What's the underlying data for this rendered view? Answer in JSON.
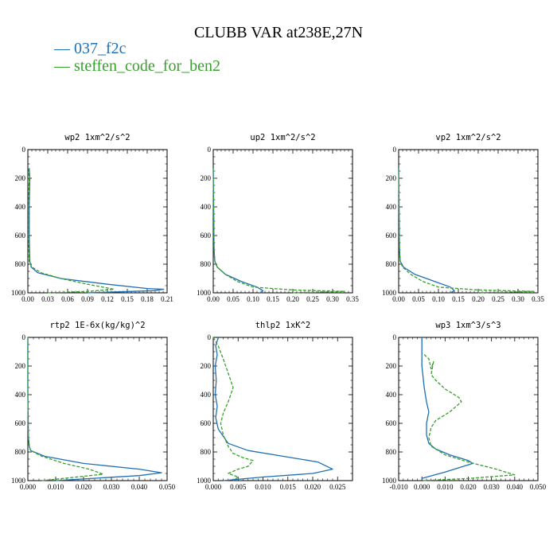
{
  "figure": {
    "title": "CLUBB VAR at238E,27N",
    "legend": [
      {
        "label": "— 037_f2c",
        "color": "#1f6fb4"
      },
      {
        "label": "— steffen_code_for_ben2",
        "color": "#3a9e2e"
      }
    ]
  },
  "chart_data": [
    {
      "type": "line",
      "title": "wp2   1xm^2/s^2",
      "xlim": [
        0,
        0.21
      ],
      "ylim": [
        1000,
        0
      ],
      "xticks": [
        "0.00",
        "0.03",
        "0.06",
        "0.09",
        "0.12",
        "0.15",
        "0.18",
        "0.21"
      ],
      "yticks": [
        "0",
        "200",
        "400",
        "600",
        "800",
        "1000"
      ],
      "series": [
        {
          "name": "037_f2c",
          "color": "#1f6fb4",
          "dash": "solid",
          "x": [
            0.002,
            0.003,
            0.002,
            0.002,
            0.003,
            0.005,
            0.015,
            0.05,
            0.12,
            0.18,
            0.205,
            0.19,
            0.09
          ],
          "y": [
            130,
            200,
            400,
            600,
            780,
            820,
            860,
            900,
            940,
            970,
            975,
            985,
            1000
          ]
        },
        {
          "name": "steffen_code_for_ben2",
          "color": "#3a9e2e",
          "dash": "dashed",
          "x": [
            0.001,
            0.002,
            0.001,
            0.001,
            0.002,
            0.006,
            0.02,
            0.05,
            0.09,
            0.13,
            0.09,
            0.03
          ],
          "y": [
            130,
            200,
            400,
            600,
            780,
            820,
            860,
            900,
            940,
            975,
            990,
            1000
          ]
        }
      ]
    },
    {
      "type": "line",
      "title": "up2   1xm^2/s^2",
      "xlim": [
        0,
        0.35
      ],
      "ylim": [
        1000,
        0
      ],
      "xticks": [
        "0.00",
        "0.05",
        "0.10",
        "0.15",
        "0.20",
        "0.25",
        "0.30",
        "0.35"
      ],
      "yticks": [
        "0",
        "200",
        "400",
        "600",
        "800",
        "1000"
      ],
      "series": [
        {
          "name": "037_f2c",
          "color": "#1f6fb4",
          "dash": "solid",
          "x": [
            0.0,
            0.001,
            0.002,
            0.004,
            0.01,
            0.03,
            0.07,
            0.11,
            0.125,
            0.12
          ],
          "y": [
            130,
            400,
            700,
            780,
            820,
            870,
            920,
            960,
            985,
            1000
          ]
        },
        {
          "name": "steffen_code_for_ben2",
          "color": "#3a9e2e",
          "dash": "dashed",
          "x": [
            0.0,
            0.001,
            0.002,
            0.004,
            0.01,
            0.03,
            0.06,
            0.1,
            0.2,
            0.33,
            0.2
          ],
          "y": [
            130,
            400,
            700,
            780,
            820,
            870,
            920,
            960,
            980,
            990,
            1000
          ]
        }
      ]
    },
    {
      "type": "line",
      "title": "vp2   1xm^2/s^2",
      "xlim": [
        0,
        0.35
      ],
      "ylim": [
        1000,
        0
      ],
      "xticks": [
        "0.00",
        "0.05",
        "0.10",
        "0.15",
        "0.20",
        "0.25",
        "0.30",
        "0.35"
      ],
      "yticks": [
        "0",
        "200",
        "400",
        "600",
        "800",
        "1000"
      ],
      "series": [
        {
          "name": "037_f2c",
          "color": "#1f6fb4",
          "dash": "solid",
          "x": [
            0.0,
            0.001,
            0.002,
            0.004,
            0.012,
            0.04,
            0.09,
            0.13,
            0.14,
            0.13
          ],
          "y": [
            130,
            400,
            700,
            780,
            820,
            870,
            920,
            960,
            985,
            1000
          ]
        },
        {
          "name": "steffen_code_for_ben2",
          "color": "#3a9e2e",
          "dash": "dashed",
          "x": [
            0.0,
            0.001,
            0.002,
            0.004,
            0.01,
            0.03,
            0.06,
            0.1,
            0.2,
            0.34,
            0.2
          ],
          "y": [
            130,
            400,
            700,
            780,
            820,
            870,
            920,
            960,
            980,
            990,
            1000
          ]
        }
      ]
    },
    {
      "type": "line",
      "title": "rtp2   1E-6x(kg/kg)^2",
      "xlim": [
        0,
        0.05
      ],
      "ylim": [
        1000,
        0
      ],
      "xticks": [
        "0.000",
        "0.010",
        "0.020",
        "0.030",
        "0.040",
        "0.050"
      ],
      "yticks": [
        "0",
        "200",
        "400",
        "600",
        "800",
        "1000"
      ],
      "series": [
        {
          "name": "037_f2c",
          "color": "#1f6fb4",
          "dash": "solid",
          "x": [
            0.0,
            0.0,
            0.0002,
            0.0005,
            0.001,
            0.006,
            0.02,
            0.04,
            0.048,
            0.04,
            0.01
          ],
          "y": [
            0,
            400,
            700,
            760,
            790,
            830,
            880,
            920,
            945,
            965,
            1000
          ]
        },
        {
          "name": "steffen_code_for_ben2",
          "color": "#3a9e2e",
          "dash": "dashed",
          "x": [
            0.0,
            0.0,
            0.0002,
            0.0005,
            0.001,
            0.005,
            0.013,
            0.022,
            0.027,
            0.02,
            0.005
          ],
          "y": [
            0,
            400,
            700,
            760,
            790,
            830,
            880,
            920,
            955,
            970,
            1000
          ]
        }
      ]
    },
    {
      "type": "line",
      "title": "thlp2   1xK^2",
      "xlim": [
        0,
        0.028
      ],
      "ylim": [
        1000,
        0
      ],
      "xticks": [
        "0.000",
        "0.005",
        "0.010",
        "0.015",
        "0.020",
        "0.025"
      ],
      "yticks": [
        "0",
        "200",
        "400",
        "600",
        "800",
        "1000"
      ],
      "series": [
        {
          "name": "037_f2c",
          "color": "#1f6fb4",
          "dash": "solid",
          "x": [
            0.001,
            0.0005,
            0.0008,
            0.0004,
            0.0006,
            0.0004,
            0.0008,
            0.0005,
            0.001,
            0.003,
            0.007,
            0.014,
            0.021,
            0.024,
            0.02,
            0.01,
            0.002
          ],
          "y": [
            0,
            60,
            120,
            200,
            300,
            400,
            480,
            560,
            640,
            740,
            790,
            830,
            870,
            920,
            950,
            975,
            1000
          ]
        },
        {
          "name": "steffen_code_for_ben2",
          "color": "#3a9e2e",
          "dash": "dashed",
          "x": [
            0.0,
            0.001,
            0.002,
            0.003,
            0.004,
            0.003,
            0.002,
            0.0015,
            0.002,
            0.003,
            0.004,
            0.006,
            0.008,
            0.007,
            0.005,
            0.003,
            0.005,
            0.004
          ],
          "y": [
            0,
            60,
            150,
            250,
            350,
            450,
            530,
            600,
            680,
            760,
            810,
            840,
            860,
            900,
            920,
            950,
            975,
            1000
          ]
        }
      ]
    },
    {
      "type": "line",
      "title": "wp3   1xm^3/s^3",
      "xlim": [
        -0.01,
        0.05
      ],
      "ylim": [
        1000,
        0
      ],
      "xticks": [
        "-0.010",
        "0.000",
        "0.010",
        "0.020",
        "0.030",
        "0.040",
        "0.050"
      ],
      "yticks": [
        "0",
        "200",
        "400",
        "600",
        "800",
        "1000"
      ],
      "series": [
        {
          "name": "037_f2c",
          "color": "#1f6fb4",
          "dash": "solid",
          "x": [
            0.0,
            0.0,
            0.001,
            0.002,
            0.003,
            0.002,
            0.002,
            0.003,
            0.006,
            0.012,
            0.02,
            0.022,
            0.01,
            0.0
          ],
          "y": [
            0,
            200,
            350,
            450,
            520,
            600,
            680,
            740,
            780,
            820,
            860,
            880,
            940,
            985
          ]
        },
        {
          "name": "steffen_code_for_ben2",
          "color": "#3a9e2e",
          "dash": "dashed",
          "x": [
            0.001,
            0.003,
            0.004,
            0.005,
            0.004,
            0.006,
            0.01,
            0.016,
            0.017,
            0.012,
            0.006,
            0.004,
            0.003,
            0.004,
            0.01,
            0.02,
            0.032,
            0.04,
            0.02,
            0.0
          ],
          "y": [
            120,
            150,
            220,
            170,
            260,
            300,
            360,
            420,
            450,
            520,
            580,
            630,
            700,
            760,
            820,
            870,
            920,
            960,
            985,
            1000
          ]
        }
      ]
    }
  ]
}
